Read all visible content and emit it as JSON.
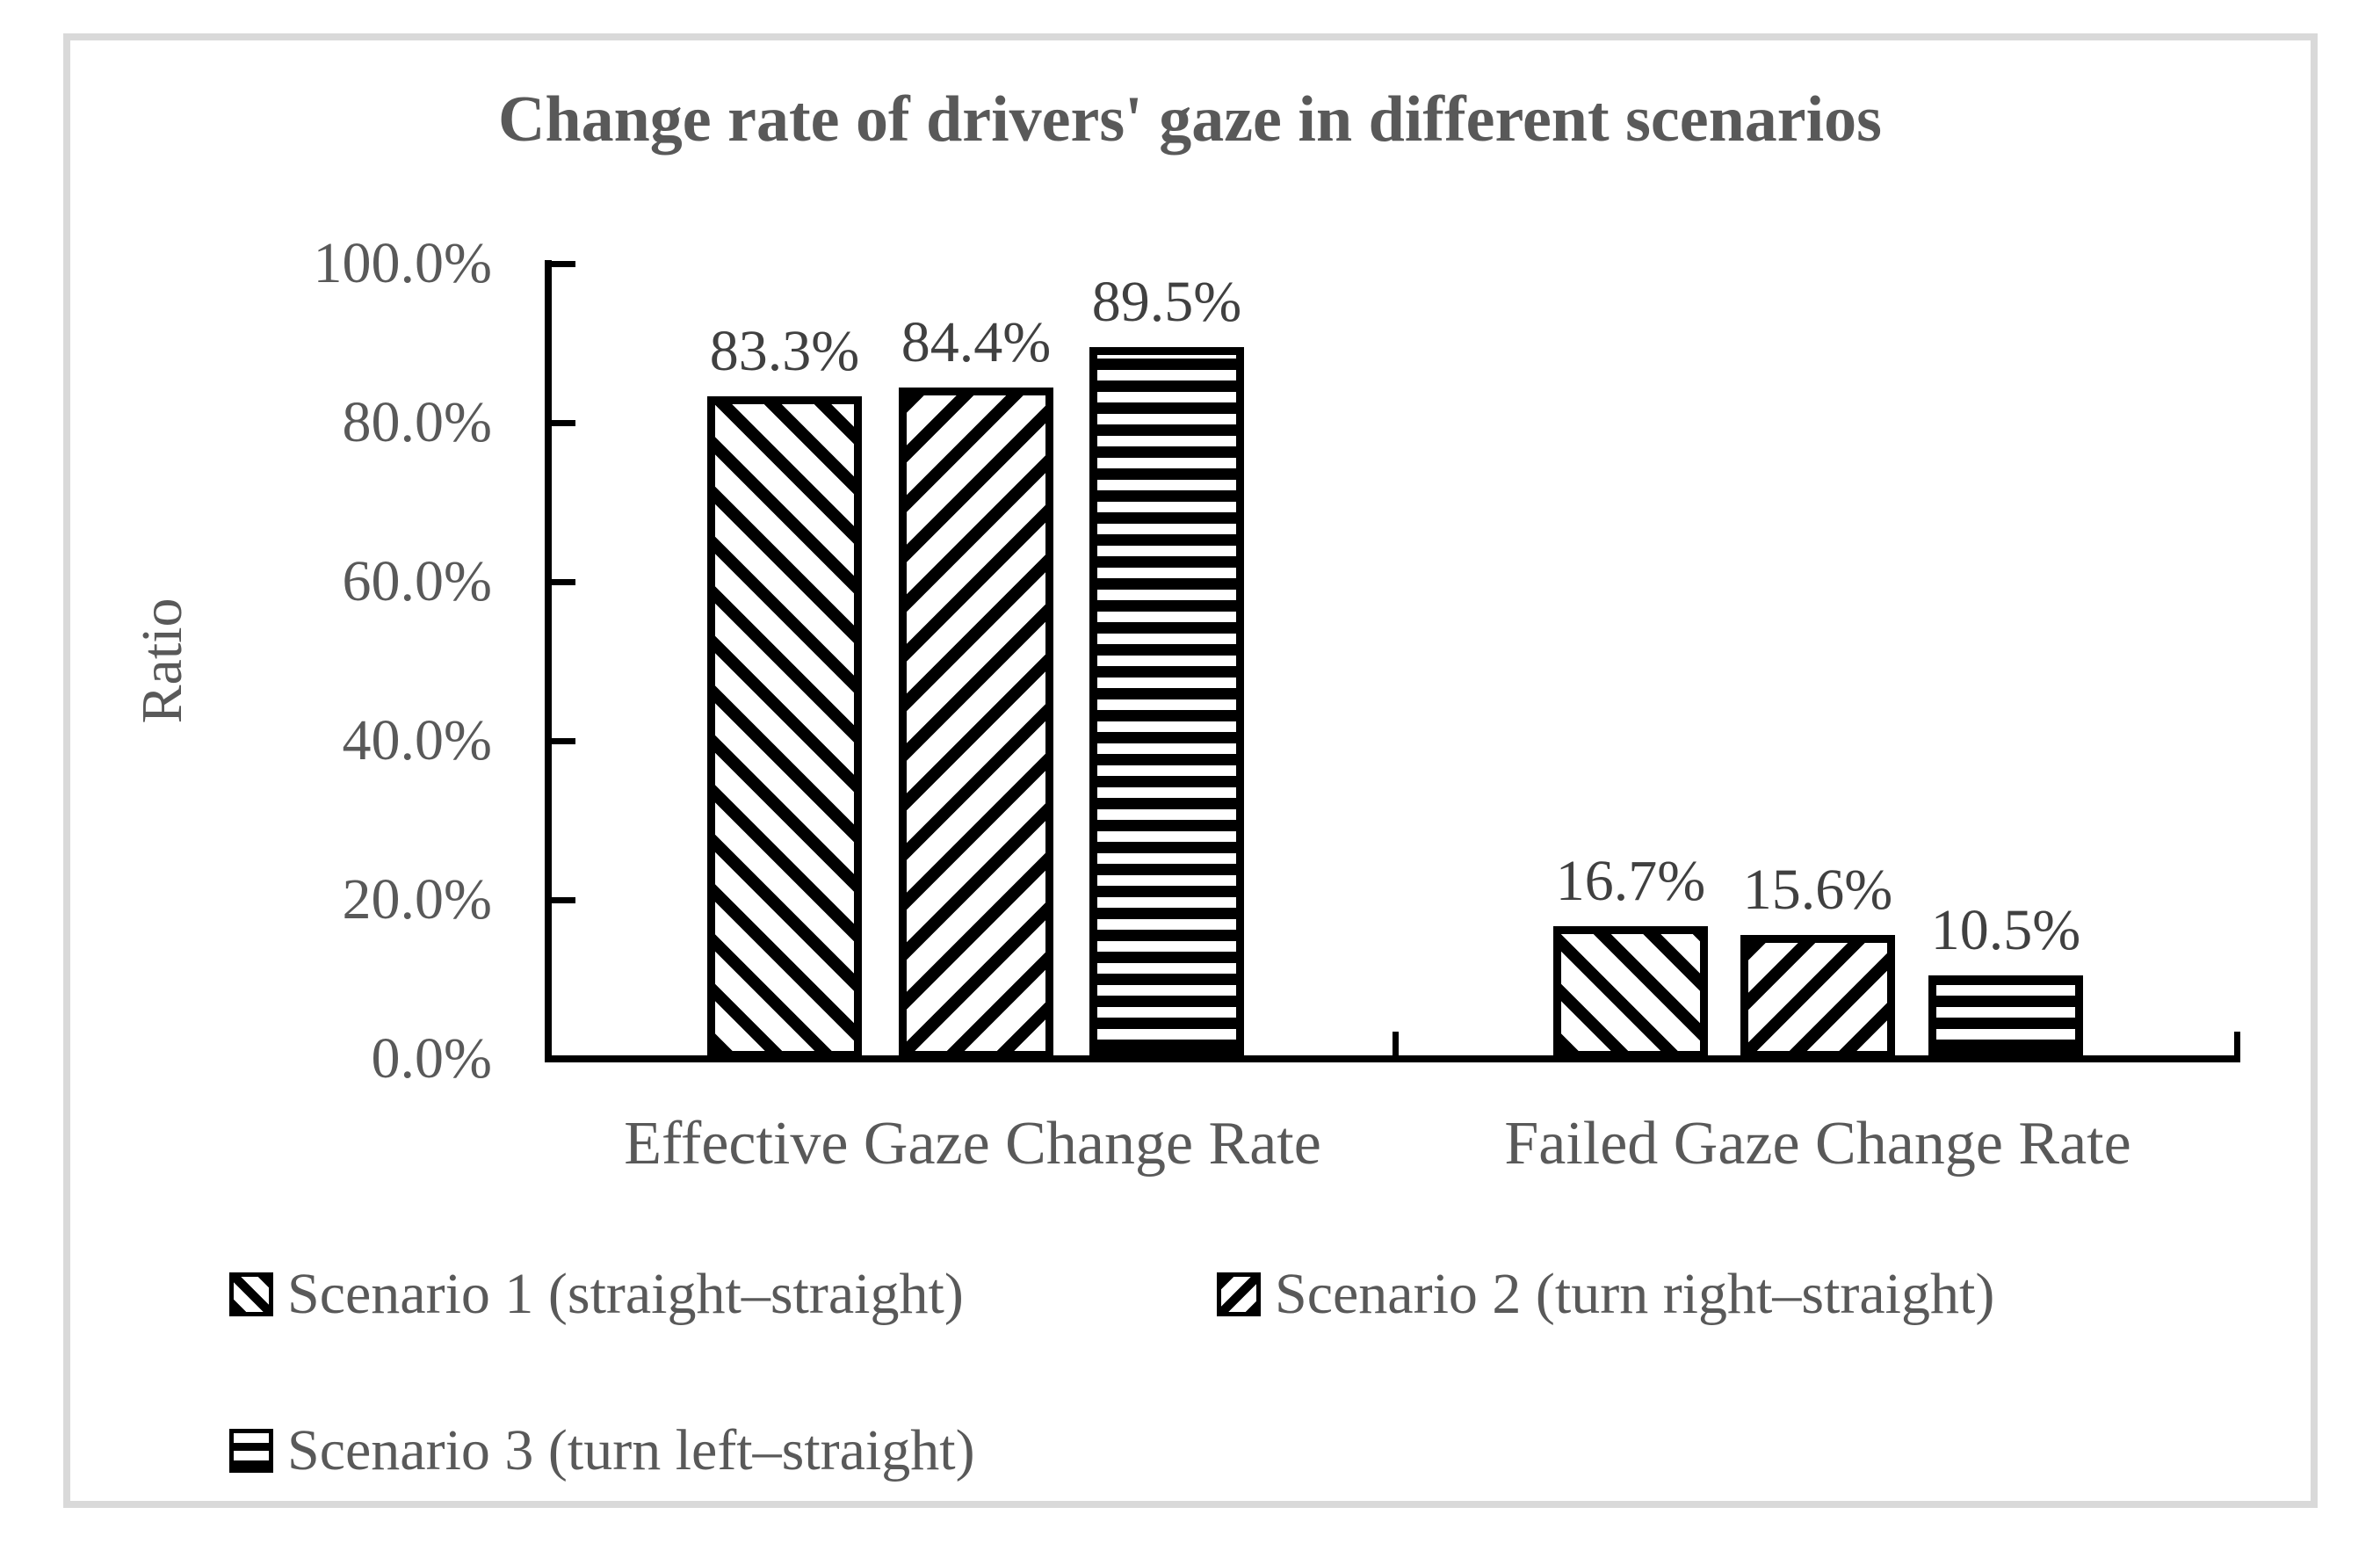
{
  "figure": {
    "background": "#ffffff",
    "frame_color": "#d9d9d9"
  },
  "chart_data": {
    "type": "bar",
    "title": "Change rate of drivers' gaze in different scenarios",
    "xlabel": "",
    "ylabel": "Ratio",
    "categories": [
      "Effective Gaze Change Rate",
      "Failed Gaze Change Rate"
    ],
    "series": [
      {
        "name": "Scenario 1 (straight–straight)",
        "hatch": "diagonal-backslash",
        "values": [
          83.3,
          16.7
        ],
        "labels": [
          "83.3%",
          "16.7%"
        ]
      },
      {
        "name": "Scenario 2 (turn right–straight)",
        "hatch": "diagonal-forward-slash",
        "values": [
          84.4,
          15.6
        ],
        "labels": [
          "84.4%",
          "15.6%"
        ]
      },
      {
        "name": "Scenario 3 (turn left–straight)",
        "hatch": "horizontal-lines",
        "values": [
          89.5,
          10.5
        ],
        "labels": [
          "89.5%",
          "10.5%"
        ]
      }
    ],
    "y_axis": {
      "min": 0,
      "max": 100,
      "tick_labels": [
        "100.0%",
        "80.0%",
        "60.0%",
        "40.0%",
        "20.0%",
        "0.0%"
      ]
    },
    "grid": false,
    "legend_position": "bottom-left",
    "bar_color": "#000000",
    "text_color": "#595959"
  }
}
